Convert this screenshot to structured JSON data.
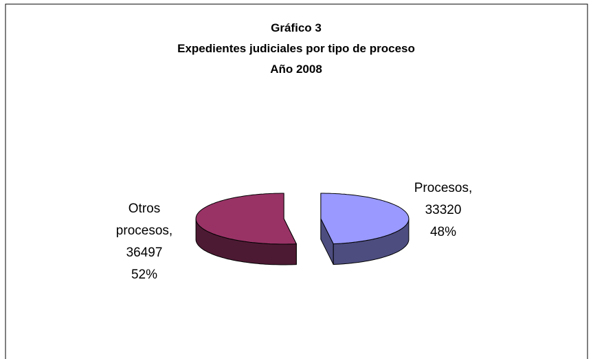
{
  "chart_data": {
    "type": "pie3d",
    "title": [
      "Gráfico 3",
      "Expedientes judiciales por tipo de proceso",
      "Año 2008"
    ],
    "categories": [
      "Procesos",
      "Otros procesos"
    ],
    "values": [
      33320,
      36497
    ],
    "percent_labels": [
      "48%",
      "52%"
    ],
    "label_separator": ",",
    "colors": [
      "#9999ff",
      "#993366"
    ],
    "side_colors": [
      "#4d4d80",
      "#4d1a33"
    ],
    "exploded": true
  }
}
